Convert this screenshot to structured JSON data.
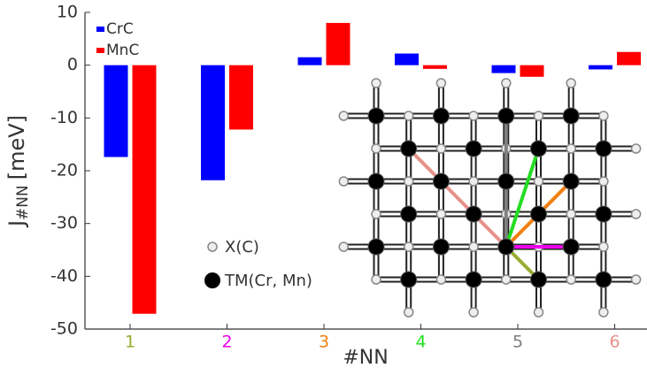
{
  "chart_data": {
    "type": "bar",
    "categories": [
      "1",
      "2",
      "3",
      "4",
      "5",
      "6"
    ],
    "category_colors": [
      "#9aab2f",
      "#ee00ee",
      "#f08010",
      "#22dd22",
      "#808080",
      "#e8908a"
    ],
    "series": [
      {
        "name": "CrC",
        "color": "#0000ff",
        "values": [
          -17.4,
          -21.8,
          1.5,
          2.2,
          -1.5,
          -0.8
        ]
      },
      {
        "name": "MnC",
        "color": "#ff0000",
        "values": [
          -47.1,
          -12.2,
          8.0,
          -0.7,
          -2.2,
          2.5
        ]
      }
    ],
    "ylim": [
      -50,
      10
    ],
    "yticks": [
      10,
      0,
      -10,
      -20,
      -30,
      -40,
      -50
    ],
    "ylabel": {
      "main": "J",
      "sub": "#NN",
      "unit": "[meV]"
    },
    "xlabel": "#NN",
    "legend": "upper left",
    "annotations": [
      "X(C)",
      "TM(Cr, Mn)"
    ]
  }
}
